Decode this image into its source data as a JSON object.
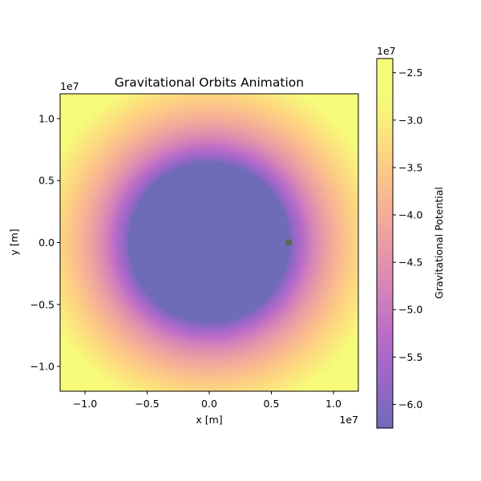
{
  "chart_data": {
    "type": "heatmap",
    "title": "Gravitational Orbits Animation",
    "xlabel": "x [m]",
    "ylabel": "y [m]",
    "x_scale_label": "1e7",
    "y_scale_label": "1e7",
    "xlim": [
      -12000000.0,
      12000000.0
    ],
    "ylim": [
      -12000000.0,
      12000000.0
    ],
    "x_ticks": [
      -1.0,
      -0.5,
      0.0,
      0.5,
      1.0
    ],
    "x_tick_labels": [
      "−1.0",
      "−0.5",
      "0.0",
      "0.5",
      "1.0"
    ],
    "y_ticks": [
      -1.0,
      -0.5,
      0.0,
      0.5,
      1.0
    ],
    "y_tick_labels": [
      "−1.0",
      "−0.5",
      "0.0",
      "0.5",
      "1.0"
    ],
    "colormap": "plasma",
    "colormap_alpha": 0.6,
    "potential": {
      "planet_radius": 6400000.0,
      "min_value": -62500000.0,
      "max_value": -23500000.0
    },
    "colorbar": {
      "label": "Gravitational Potential",
      "scale_label": "1e7",
      "ticks": [
        -6.0,
        -5.5,
        -5.0,
        -4.5,
        -4.0,
        -3.5,
        -3.0,
        -2.5
      ],
      "tick_labels": [
        "−6.0",
        "−5.5",
        "−5.0",
        "−4.5",
        "−4.0",
        "−3.5",
        "−3.0",
        "−2.5"
      ],
      "range": [
        -6.25,
        -2.35
      ]
    },
    "orbiting_body": {
      "x": 6400000.0,
      "y": 0,
      "color": "#5a6b55"
    }
  }
}
